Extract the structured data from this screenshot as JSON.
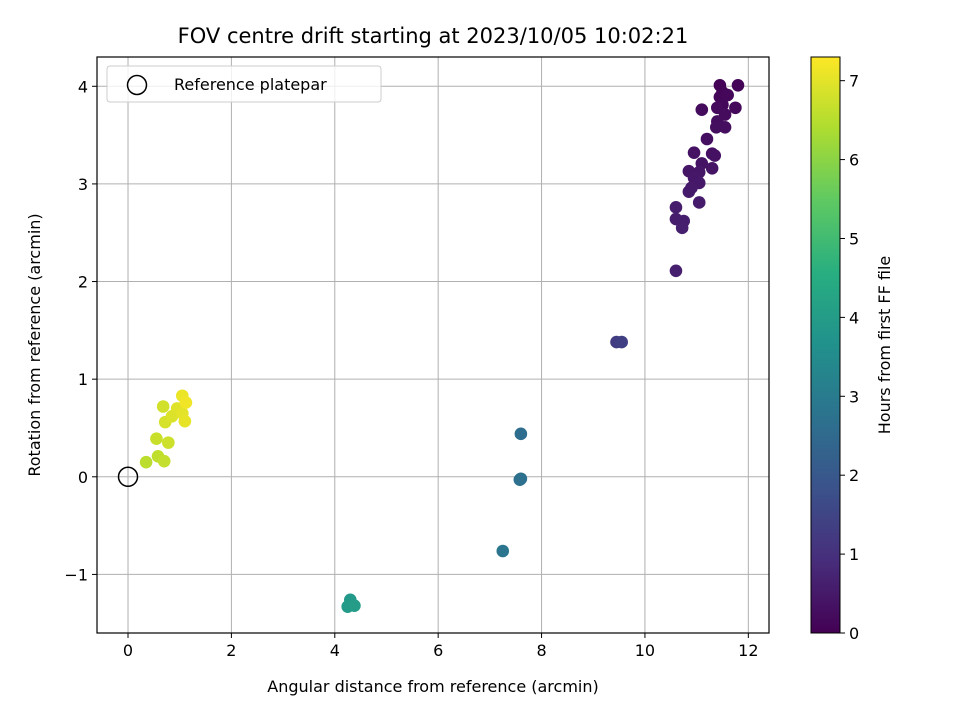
{
  "chart_data": {
    "type": "scatter",
    "title": "FOV centre drift starting at 2023/10/05 10:02:21",
    "xlabel": "Angular distance from reference (arcmin)",
    "ylabel": "Rotation from reference (arcmin)",
    "xlim": [
      -0.6,
      12.4
    ],
    "ylim": [
      -1.6,
      4.3
    ],
    "xticks": [
      0,
      2,
      4,
      6,
      8,
      10,
      12
    ],
    "yticks": [
      -1,
      0,
      1,
      2,
      3,
      4
    ],
    "xtick_labels": [
      "0",
      "2",
      "4",
      "6",
      "8",
      "10",
      "12"
    ],
    "ytick_labels": [
      "−1",
      "0",
      "1",
      "2",
      "3",
      "4"
    ],
    "grid": true,
    "legend": {
      "position": "upper-left",
      "entries": [
        "Reference platepar"
      ]
    },
    "reference_point": {
      "x": 0,
      "y": 0,
      "label": "Reference platepar"
    },
    "colorbar": {
      "label": "Hours from first FF file",
      "range": [
        0,
        7.3
      ],
      "colormap": "viridis",
      "ticks": [
        0,
        1,
        2,
        3,
        4,
        5,
        6,
        7
      ],
      "tick_labels": [
        "0",
        "1",
        "2",
        "3",
        "4",
        "5",
        "6",
        "7"
      ]
    },
    "series": [
      {
        "color_by": "hours",
        "points": [
          {
            "x": 11.45,
            "y": 4.01,
            "c": 0.05
          },
          {
            "x": 11.8,
            "y": 4.01,
            "c": 0.07
          },
          {
            "x": 11.5,
            "y": 3.94,
            "c": 0.08
          },
          {
            "x": 11.45,
            "y": 3.89,
            "c": 0.1
          },
          {
            "x": 11.6,
            "y": 3.91,
            "c": 0.12
          },
          {
            "x": 11.5,
            "y": 3.81,
            "c": 0.15
          },
          {
            "x": 11.75,
            "y": 3.78,
            "c": 0.16
          },
          {
            "x": 11.4,
            "y": 3.78,
            "c": 0.18
          },
          {
            "x": 11.55,
            "y": 3.71,
            "c": 0.2
          },
          {
            "x": 11.1,
            "y": 3.76,
            "c": 0.22
          },
          {
            "x": 11.4,
            "y": 3.64,
            "c": 0.24
          },
          {
            "x": 11.55,
            "y": 3.58,
            "c": 0.26
          },
          {
            "x": 11.38,
            "y": 3.58,
            "c": 0.28
          },
          {
            "x": 11.2,
            "y": 3.46,
            "c": 0.3
          },
          {
            "x": 11.3,
            "y": 3.31,
            "c": 0.32
          },
          {
            "x": 11.35,
            "y": 3.29,
            "c": 0.34
          },
          {
            "x": 10.95,
            "y": 3.32,
            "c": 0.36
          },
          {
            "x": 11.1,
            "y": 3.21,
            "c": 0.38
          },
          {
            "x": 11.3,
            "y": 3.16,
            "c": 0.4
          },
          {
            "x": 10.85,
            "y": 3.13,
            "c": 0.42
          },
          {
            "x": 11.05,
            "y": 3.12,
            "c": 0.44
          },
          {
            "x": 10.95,
            "y": 3.06,
            "c": 0.46
          },
          {
            "x": 11.05,
            "y": 3.01,
            "c": 0.48
          },
          {
            "x": 10.9,
            "y": 2.96,
            "c": 0.5
          },
          {
            "x": 10.85,
            "y": 2.92,
            "c": 0.52
          },
          {
            "x": 11.05,
            "y": 2.81,
            "c": 0.54
          },
          {
            "x": 10.6,
            "y": 2.76,
            "c": 0.56
          },
          {
            "x": 10.6,
            "y": 2.64,
            "c": 0.58
          },
          {
            "x": 10.75,
            "y": 2.62,
            "c": 0.6
          },
          {
            "x": 10.72,
            "y": 2.55,
            "c": 0.62
          },
          {
            "x": 10.6,
            "y": 2.11,
            "c": 0.64
          },
          {
            "x": 9.45,
            "y": 1.38,
            "c": 1.3
          },
          {
            "x": 9.55,
            "y": 1.38,
            "c": 1.35
          },
          {
            "x": 7.6,
            "y": 0.44,
            "c": 2.6
          },
          {
            "x": 7.6,
            "y": -0.02,
            "c": 2.65
          },
          {
            "x": 7.58,
            "y": -0.03,
            "c": 2.7
          },
          {
            "x": 7.25,
            "y": -0.76,
            "c": 2.85
          },
          {
            "x": 4.3,
            "y": -1.26,
            "c": 3.9
          },
          {
            "x": 4.25,
            "y": -1.33,
            "c": 3.95
          },
          {
            "x": 4.38,
            "y": -1.32,
            "c": 4.0
          },
          {
            "x": 0.35,
            "y": 0.15,
            "c": 6.55
          },
          {
            "x": 0.58,
            "y": 0.21,
            "c": 6.6
          },
          {
            "x": 0.7,
            "y": 0.16,
            "c": 6.65
          },
          {
            "x": 0.55,
            "y": 0.39,
            "c": 6.7
          },
          {
            "x": 0.78,
            "y": 0.35,
            "c": 6.75
          },
          {
            "x": 0.68,
            "y": 0.72,
            "c": 6.8
          },
          {
            "x": 0.72,
            "y": 0.56,
            "c": 6.85
          },
          {
            "x": 0.85,
            "y": 0.62,
            "c": 6.9
          },
          {
            "x": 0.95,
            "y": 0.7,
            "c": 6.95
          },
          {
            "x": 1.05,
            "y": 0.65,
            "c": 7.0
          },
          {
            "x": 1.1,
            "y": 0.57,
            "c": 7.05
          },
          {
            "x": 1.05,
            "y": 0.83,
            "c": 7.1
          },
          {
            "x": 1.12,
            "y": 0.76,
            "c": 7.15
          }
        ]
      }
    ]
  }
}
